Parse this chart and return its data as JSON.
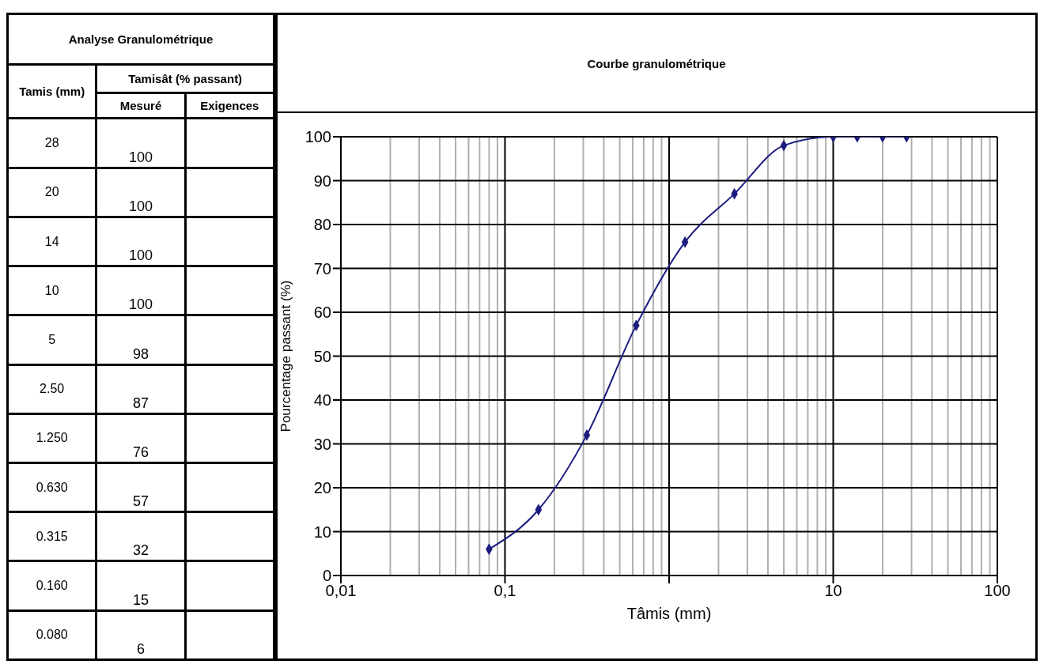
{
  "chart_data": [
    {
      "type": "other",
      "annotations": [
        "Analyse  Granulométrique",
        "Tamis (mm)",
        "Tamisât (% passant)",
        "Mesuré",
        "Exigences",
        "28",
        "20",
        "14",
        "10",
        "5",
        "2.50",
        "1.250",
        "0.630",
        "0.315",
        "0.160",
        "0.080",
        "100",
        "100",
        "100",
        "100",
        "98",
        "87",
        "76",
        "57",
        "32",
        "15",
        "6"
      ]
    },
    {
      "type": "line",
      "title": "Courbe granulométrique",
      "xlabel": "Tâmis (mm)",
      "ylabel": "Pourcentage passant (%)",
      "x": [
        28,
        20,
        14,
        10,
        5,
        2.5,
        1.25,
        0.63,
        0.315,
        0.16,
        0.08
      ],
      "series": [
        {
          "color": "#1c1c80",
          "values": [
            100,
            100,
            100,
            100,
            98,
            87,
            76,
            57,
            32,
            15,
            6
          ]
        }
      ],
      "log": "x",
      "grid": true,
      "marker": "diamond",
      "line_style": "solid",
      "xlim": [
        0.01,
        100
      ],
      "xticks": [
        {
          "value": 0.01,
          "label": "0,01"
        },
        {
          "value": 0.1,
          "label": "0,1"
        },
        {
          "value": 1,
          "label": null
        },
        {
          "value": 10,
          "label": "10"
        },
        {
          "value": 100,
          "label": "100"
        }
      ],
      "ylim": [
        0,
        100
      ],
      "yticks": [
        0,
        10,
        20,
        30,
        40,
        50,
        60,
        70,
        80,
        90,
        100
      ]
    }
  ]
}
